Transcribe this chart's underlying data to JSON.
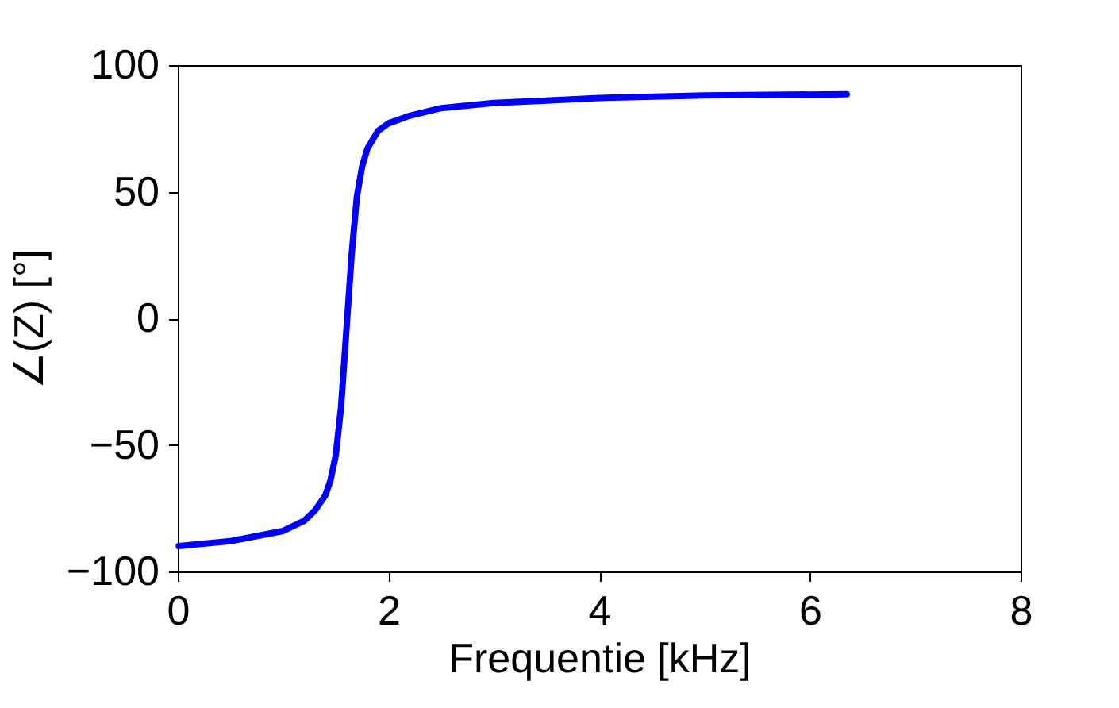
{
  "chart_data": {
    "type": "line",
    "xlabel": "Frequentie [kHz]",
    "ylabel": "∠(Z) [°]",
    "x": [
      0.01,
      0.5,
      1.0,
      1.2,
      1.3,
      1.4,
      1.45,
      1.5,
      1.55,
      1.6,
      1.65,
      1.7,
      1.75,
      1.8,
      1.9,
      2.0,
      2.2,
      2.5,
      3.0,
      3.5,
      4.0,
      5.0,
      6.35
    ],
    "series": [
      {
        "color": "#0000ff",
        "values": [
          -90,
          -88,
          -84,
          -80,
          -76,
          -70,
          -64,
          -54,
          -35,
          -5,
          25,
          48,
          60,
          67,
          74,
          77,
          80,
          83,
          85,
          86,
          87,
          88,
          88.5
        ]
      }
    ],
    "xlim": [
      0,
      8
    ],
    "xticks": [
      0,
      2,
      4,
      6,
      8
    ],
    "ylim": [
      -100,
      100
    ],
    "yticks": [
      -100,
      -50,
      0,
      50,
      100
    ],
    "grid": false,
    "marker": "none",
    "line_style": "solid"
  }
}
